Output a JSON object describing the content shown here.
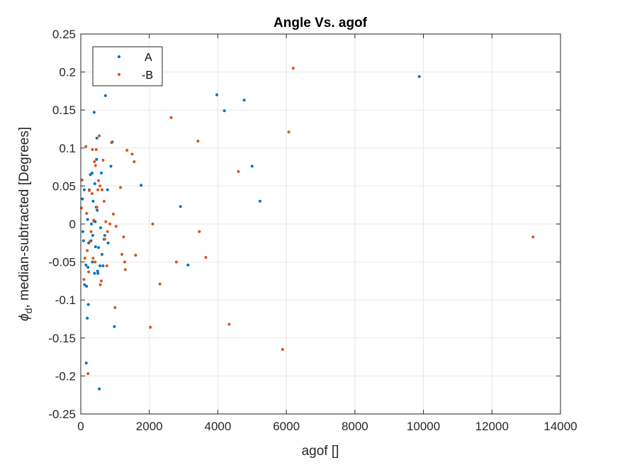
{
  "chart_data": {
    "type": "scatter",
    "title": "Angle Vs. agof",
    "xlabel": "agof []",
    "ylabel_symbol": "ϕ",
    "ylabel_sub": "d",
    "ylabel_rest": ", median-subtracted [Degrees]",
    "xlim": [
      0,
      14000
    ],
    "ylim": [
      -0.25,
      0.25
    ],
    "xticks": [
      0,
      2000,
      4000,
      6000,
      8000,
      10000,
      12000,
      14000
    ],
    "yticks": [
      -0.25,
      -0.2,
      -0.15,
      -0.1,
      -0.05,
      0,
      0.05,
      0.1,
      0.15,
      0.2,
      0.25
    ],
    "xtick_labels": [
      "0",
      "2000",
      "4000",
      "6000",
      "8000",
      "10000",
      "12000",
      "14000"
    ],
    "ytick_labels": [
      "-0.25",
      "-0.2",
      "-0.15",
      "-0.1",
      "-0.05",
      "0",
      "0.05",
      "0.1",
      "0.15",
      "0.2",
      "0.25"
    ],
    "grid": true,
    "legend_position": "top-left",
    "series": [
      {
        "name": "A",
        "color": "#0072BD",
        "points": [
          [
            50,
            0.033
          ],
          [
            60,
            -0.01
          ],
          [
            80,
            -0.022
          ],
          [
            100,
            0.045
          ],
          [
            110,
            -0.08
          ],
          [
            150,
            -0.054
          ],
          [
            160,
            -0.183
          ],
          [
            170,
            -0.082
          ],
          [
            190,
            -0.124
          ],
          [
            200,
            0.006
          ],
          [
            210,
            -0.057
          ],
          [
            220,
            -0.106
          ],
          [
            230,
            -0.025
          ],
          [
            250,
            0.045
          ],
          [
            280,
            0.065
          ],
          [
            300,
            -0.022
          ],
          [
            310,
            0.0
          ],
          [
            330,
            0.067
          ],
          [
            340,
            -0.05
          ],
          [
            350,
            -0.015
          ],
          [
            360,
            0.03
          ],
          [
            380,
            0.004
          ],
          [
            390,
            0.147
          ],
          [
            400,
            -0.065
          ],
          [
            410,
            0.053
          ],
          [
            420,
            0.003
          ],
          [
            430,
            -0.03
          ],
          [
            450,
            0.022
          ],
          [
            460,
            0.085
          ],
          [
            470,
            0.113
          ],
          [
            480,
            0.018
          ],
          [
            490,
            -0.062
          ],
          [
            500,
            -0.065
          ],
          [
            520,
            -0.031
          ],
          [
            540,
            -0.217
          ],
          [
            560,
            -0.055
          ],
          [
            580,
            -0.005
          ],
          [
            600,
            0.067
          ],
          [
            620,
            -0.04
          ],
          [
            650,
            -0.055
          ],
          [
            680,
            -0.02
          ],
          [
            700,
            -0.015
          ],
          [
            720,
            0.169
          ],
          [
            780,
            0.045
          ],
          [
            800,
            -0.025
          ],
          [
            880,
            0.076
          ],
          [
            920,
            0.108
          ],
          [
            980,
            -0.135
          ],
          [
            1760,
            0.051
          ],
          [
            2910,
            0.023
          ],
          [
            3130,
            -0.054
          ],
          [
            3970,
            0.17
          ],
          [
            4190,
            0.149
          ],
          [
            4770,
            0.163
          ],
          [
            5000,
            0.076
          ],
          [
            5230,
            0.03
          ],
          [
            9880,
            0.194
          ]
        ]
      },
      {
        "name": "-B",
        "color": "#D95319",
        "points": [
          [
            20,
            0.021
          ],
          [
            40,
            0.058
          ],
          [
            90,
            -0.073
          ],
          [
            120,
            -0.045
          ],
          [
            150,
            0.102
          ],
          [
            170,
            0.014
          ],
          [
            190,
            -0.035
          ],
          [
            210,
            -0.197
          ],
          [
            230,
            -0.063
          ],
          [
            250,
            0.044
          ],
          [
            270,
            -0.023
          ],
          [
            300,
            -0.01
          ],
          [
            330,
            0.04
          ],
          [
            340,
            0.098
          ],
          [
            360,
            -0.045
          ],
          [
            380,
            0.005
          ],
          [
            400,
            0.082
          ],
          [
            420,
            -0.05
          ],
          [
            430,
            0.077
          ],
          [
            450,
            0.098
          ],
          [
            470,
            0.022
          ],
          [
            500,
            0.045
          ],
          [
            520,
            0.057
          ],
          [
            540,
            0.116
          ],
          [
            560,
            0.05
          ],
          [
            570,
            -0.08
          ],
          [
            600,
            -0.075
          ],
          [
            620,
            0.045
          ],
          [
            650,
            0.084
          ],
          [
            680,
            0.03
          ],
          [
            700,
            -0.02
          ],
          [
            730,
            0.003
          ],
          [
            760,
            -0.055
          ],
          [
            780,
            -0.01
          ],
          [
            850,
            0.0
          ],
          [
            900,
            0.107
          ],
          [
            950,
            0.013
          ],
          [
            1000,
            -0.11
          ],
          [
            1030,
            -0.003
          ],
          [
            1160,
            0.048
          ],
          [
            1200,
            -0.04
          ],
          [
            1250,
            -0.017
          ],
          [
            1280,
            -0.05
          ],
          [
            1300,
            -0.06
          ],
          [
            1350,
            0.097
          ],
          [
            1500,
            0.092
          ],
          [
            1560,
            0.082
          ],
          [
            1600,
            -0.041
          ],
          [
            2030,
            -0.136
          ],
          [
            2100,
            0.0
          ],
          [
            2310,
            -0.079
          ],
          [
            2640,
            0.14
          ],
          [
            2790,
            -0.05
          ],
          [
            3420,
            0.109
          ],
          [
            3460,
            -0.01
          ],
          [
            3650,
            -0.044
          ],
          [
            4330,
            -0.132
          ],
          [
            4600,
            0.069
          ],
          [
            5890,
            -0.165
          ],
          [
            6070,
            0.121
          ],
          [
            6200,
            0.205
          ],
          [
            13200,
            -0.017
          ]
        ]
      }
    ]
  }
}
